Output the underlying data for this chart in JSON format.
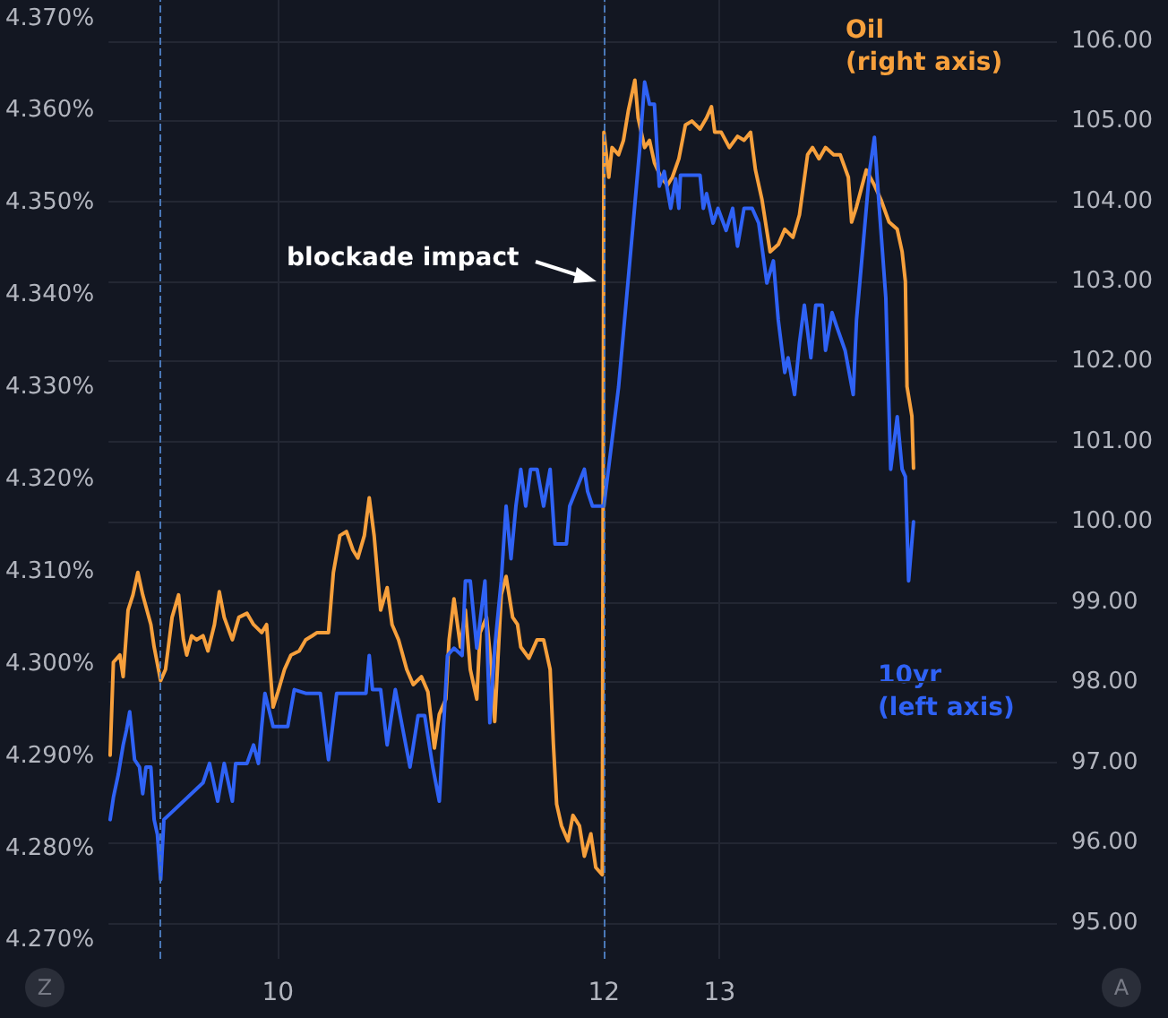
{
  "chart_data": {
    "type": "line",
    "xlim": [
      8.96,
      14.78
    ],
    "xticks": [
      {
        "value": 10,
        "label": "10"
      },
      {
        "value": 12,
        "label": "12"
      },
      {
        "value": 12.71,
        "label": "13"
      }
    ],
    "ylim": [
      4.268,
      4.372
    ],
    "yticks": [
      {
        "value": 4.27,
        "label": "4.270%"
      },
      {
        "value": 4.28,
        "label": "4.280%"
      },
      {
        "value": 4.29,
        "label": "4.290%"
      },
      {
        "value": 4.3,
        "label": "4.300%"
      },
      {
        "value": 4.31,
        "label": "4.310%"
      },
      {
        "value": 4.32,
        "label": "4.320%"
      },
      {
        "value": 4.33,
        "label": "4.330%"
      },
      {
        "value": 4.34,
        "label": "4.340%"
      },
      {
        "value": 4.35,
        "label": "4.350%"
      },
      {
        "value": 4.36,
        "label": "4.360%"
      },
      {
        "value": 4.37,
        "label": "4.370%"
      }
    ],
    "y2lim": [
      94.55,
      106.51
    ],
    "y2ticks": [
      {
        "value": 95,
        "label": "95.00"
      },
      {
        "value": 96,
        "label": "96.00"
      },
      {
        "value": 97,
        "label": "97.00"
      },
      {
        "value": 98,
        "label": "98.00"
      },
      {
        "value": 99,
        "label": "99.00"
      },
      {
        "value": 100,
        "label": "100.00"
      },
      {
        "value": 101,
        "label": "101.00"
      },
      {
        "value": 102,
        "label": "102.00"
      },
      {
        "value": 103,
        "label": "103.00"
      },
      {
        "value": 104,
        "label": "104.00"
      },
      {
        "value": 105,
        "label": "105.00"
      },
      {
        "value": 106,
        "label": "106.00"
      }
    ],
    "grid": true,
    "legend": false,
    "marker": "none",
    "line_style": "solid",
    "ref_lines": [
      {
        "axis": "x",
        "value": 9.27,
        "color": "#4a78b8",
        "line_style": "dashed"
      },
      {
        "axis": "x",
        "value": 12.0,
        "color": "#4a78b8",
        "line_style": "dashed"
      }
    ],
    "annotations": [
      "blockade impact",
      "Z",
      "A"
    ],
    "series": [
      {
        "name": "Oil\n(right axis)",
        "color": "#f7a03c",
        "axis": "y2",
        "x": [
          8.97,
          8.99,
          9.03,
          9.05,
          9.08,
          9.11,
          9.14,
          9.17,
          9.22,
          9.24,
          9.28,
          9.31,
          9.35,
          9.39,
          9.42,
          9.44,
          9.47,
          9.5,
          9.54,
          9.57,
          9.61,
          9.64,
          9.67,
          9.72,
          9.76,
          9.81,
          9.85,
          9.9,
          9.93,
          9.97,
          10.0,
          10.04,
          10.08,
          10.13,
          10.17,
          10.21,
          10.24,
          10.31,
          10.34,
          10.38,
          10.42,
          10.46,
          10.49,
          10.53,
          10.56,
          10.59,
          10.63,
          10.67,
          10.7,
          10.74,
          10.79,
          10.83,
          10.88,
          10.92,
          10.96,
          10.99,
          11.03,
          11.05,
          11.08,
          11.12,
          11.15,
          11.18,
          11.22,
          11.24,
          11.28,
          11.31,
          11.33,
          11.37,
          11.4,
          11.44,
          11.47,
          11.49,
          11.54,
          11.59,
          11.63,
          11.67,
          11.69,
          11.71,
          11.74,
          11.78,
          11.81,
          11.85,
          11.88,
          11.92,
          11.95,
          11.99,
          12.0,
          12.03,
          12.05,
          12.09,
          12.12,
          12.15,
          12.19,
          12.21,
          12.25,
          12.28,
          12.31,
          12.35,
          12.39,
          12.42,
          12.46,
          12.5,
          12.54,
          12.59,
          12.63,
          12.66,
          12.68,
          12.72,
          12.77,
          12.82,
          12.86,
          12.9,
          12.93,
          12.97,
          13.02,
          13.07,
          13.11,
          13.16,
          13.2,
          13.25,
          13.28,
          13.32,
          13.36,
          13.41,
          13.45,
          13.5,
          13.52,
          13.55,
          13.58,
          13.61,
          13.66,
          13.7,
          13.75,
          13.8,
          13.83,
          13.85,
          13.86,
          13.89,
          13.9
        ],
        "values": [
          97.09,
          98.25,
          98.34,
          98.07,
          98.9,
          99.09,
          99.37,
          99.09,
          98.72,
          98.44,
          98.02,
          98.16,
          98.81,
          99.09,
          98.53,
          98.34,
          98.58,
          98.53,
          98.58,
          98.39,
          98.72,
          99.13,
          98.81,
          98.53,
          98.81,
          98.86,
          98.72,
          98.62,
          98.72,
          97.69,
          97.88,
          98.16,
          98.34,
          98.39,
          98.53,
          98.58,
          98.62,
          98.62,
          99.37,
          99.83,
          99.88,
          99.65,
          99.55,
          99.83,
          100.3,
          99.83,
          98.9,
          99.18,
          98.72,
          98.53,
          98.16,
          97.97,
          98.07,
          97.88,
          97.18,
          97.6,
          97.79,
          98.53,
          99.04,
          98.44,
          98.9,
          98.16,
          97.79,
          98.62,
          98.81,
          98.16,
          97.51,
          99.09,
          99.32,
          98.81,
          98.72,
          98.44,
          98.3,
          98.53,
          98.53,
          98.16,
          97.23,
          96.48,
          96.21,
          96.02,
          96.34,
          96.21,
          95.83,
          96.11,
          95.69,
          95.6,
          104.86,
          104.3,
          104.67,
          104.58,
          104.76,
          105.13,
          105.51,
          105.04,
          104.67,
          104.76,
          104.48,
          104.3,
          104.2,
          104.3,
          104.53,
          104.95,
          105.0,
          104.9,
          105.04,
          105.18,
          104.86,
          104.86,
          104.67,
          104.81,
          104.76,
          104.86,
          104.39,
          104.02,
          103.37,
          103.46,
          103.65,
          103.55,
          103.83,
          104.58,
          104.67,
          104.53,
          104.67,
          104.58,
          104.58,
          104.3,
          103.74,
          103.93,
          104.16,
          104.39,
          104.2,
          104.02,
          103.74,
          103.65,
          103.37,
          103.0,
          101.69,
          101.32,
          100.67
        ]
      },
      {
        "name": "10yr\n(left axis)",
        "color": "#2f62f5",
        "axis": "y",
        "x": [
          8.97,
          8.99,
          9.02,
          9.05,
          9.07,
          9.09,
          9.12,
          9.15,
          9.17,
          9.19,
          9.22,
          9.24,
          9.26,
          9.28,
          9.3,
          9.54,
          9.58,
          9.63,
          9.67,
          9.72,
          9.74,
          9.81,
          9.85,
          9.88,
          9.9,
          9.92,
          9.97,
          10.01,
          10.06,
          10.1,
          10.17,
          10.26,
          10.31,
          10.36,
          10.45,
          10.54,
          10.56,
          10.58,
          10.63,
          10.67,
          10.72,
          10.81,
          10.86,
          10.9,
          10.95,
          10.99,
          11.02,
          11.04,
          11.08,
          11.13,
          11.15,
          11.18,
          11.22,
          11.27,
          11.3,
          11.33,
          11.37,
          11.4,
          11.43,
          11.46,
          11.49,
          11.52,
          11.55,
          11.59,
          11.63,
          11.67,
          11.7,
          11.77,
          11.79,
          11.88,
          11.9,
          11.93,
          12.0,
          12.09,
          12.18,
          12.22,
          12.25,
          12.28,
          12.31,
          12.34,
          12.37,
          12.41,
          12.44,
          12.46,
          12.47,
          12.59,
          12.61,
          12.63,
          12.67,
          12.7,
          12.75,
          12.79,
          12.82,
          12.86,
          12.91,
          12.95,
          13.0,
          13.04,
          13.07,
          13.11,
          13.13,
          13.17,
          13.2,
          13.23,
          13.27,
          13.3,
          13.34,
          13.36,
          13.4,
          13.43,
          13.48,
          13.53,
          13.55,
          13.59,
          13.63,
          13.66,
          13.69,
          13.73,
          13.76,
          13.8,
          13.83,
          13.85,
          13.87,
          13.9
        ],
        "values": [
          4.2831,
          4.2855,
          4.288,
          4.2912,
          4.2928,
          4.2948,
          4.2896,
          4.2888,
          4.2859,
          4.2888,
          4.2888,
          4.2831,
          4.2815,
          4.2766,
          4.2831,
          4.2871,
          4.2892,
          4.2851,
          4.2892,
          4.2851,
          4.2892,
          4.2892,
          4.2912,
          4.2892,
          4.2932,
          4.2968,
          4.2932,
          4.2932,
          4.2932,
          4.2972,
          4.2968,
          4.2968,
          4.2896,
          4.2968,
          4.2968,
          4.2968,
          4.3009,
          4.2972,
          4.2972,
          4.2912,
          4.2972,
          4.2888,
          4.2944,
          4.2944,
          4.2888,
          4.2851,
          4.2944,
          4.3009,
          4.3017,
          4.3009,
          4.309,
          4.309,
          4.3017,
          4.309,
          4.2936,
          4.3017,
          4.309,
          4.3171,
          4.3114,
          4.3171,
          4.3211,
          4.3171,
          4.3211,
          4.3211,
          4.3171,
          4.3211,
          4.313,
          4.313,
          4.3171,
          4.3211,
          4.3187,
          4.3171,
          4.3171,
          4.33,
          4.3478,
          4.3559,
          4.3631,
          4.3607,
          4.3607,
          4.3518,
          4.3534,
          4.3494,
          4.3526,
          4.3494,
          4.353,
          4.353,
          4.3494,
          4.351,
          4.3478,
          4.3494,
          4.347,
          4.3494,
          4.3453,
          4.3494,
          4.3494,
          4.3478,
          4.3413,
          4.3437,
          4.3373,
          4.3316,
          4.3332,
          4.3292,
          4.3348,
          4.3389,
          4.3332,
          4.3389,
          4.3389,
          4.334,
          4.3381,
          4.3365,
          4.334,
          4.3292,
          4.3373,
          4.3453,
          4.3534,
          4.3571,
          4.3494,
          4.3397,
          4.3211,
          4.3268,
          4.3211,
          4.3203,
          4.309,
          4.3154
        ]
      }
    ]
  }
}
